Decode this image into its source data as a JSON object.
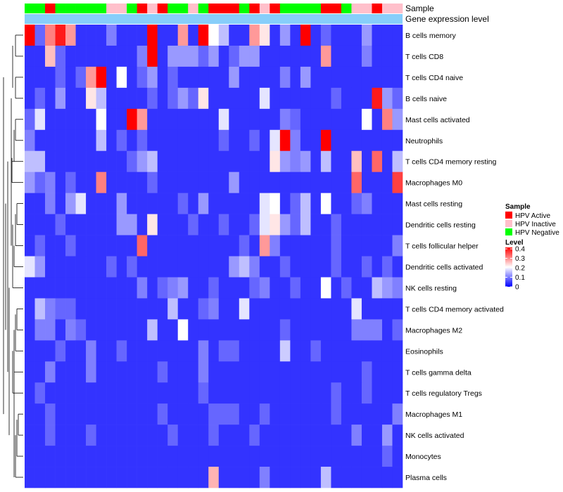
{
  "chart_data": {
    "type": "heatmap",
    "annotation_labels": [
      "Sample",
      "Gene expression level"
    ],
    "rows": [
      "B cells memory",
      "T cells CD8",
      "T cells CD4 naive",
      "B cells naive",
      "Mast cells activated",
      "Neutrophils",
      "T cells CD4 memory resting",
      "Macrophages M0",
      "Mast cells resting",
      "Dendritic cells resting",
      "T cells follicular helper",
      "Dendritic cells activated",
      "NK cells resting",
      "T cells CD4 memory activated",
      "Macrophages M2",
      "Eosinophils",
      "T cells gamma delta",
      "T cells regulatory  Tregs",
      "Macrophages M1",
      "NK cells activated",
      "Monocytes",
      "Plasma cells"
    ],
    "sample_annotation": [
      "Negative",
      "Negative",
      "Active",
      "Negative",
      "Negative",
      "Negative",
      "Negative",
      "Negative",
      "Inactive",
      "Inactive",
      "Negative",
      "Active",
      "Inactive",
      "Active",
      "Negative",
      "Negative",
      "Inactive",
      "Negative",
      "Active",
      "Active",
      "Active",
      "Negative",
      "Active",
      "Inactive",
      "Active",
      "Negative",
      "Negative",
      "Negative",
      "Negative",
      "Active",
      "Active",
      "Negative",
      "Inactive",
      "Inactive",
      "Active",
      "Inactive",
      "Inactive"
    ],
    "sample_legend": {
      "title": "Sample",
      "entries": [
        "HPV Active",
        "HPV Inactive",
        "HPV Negative"
      ]
    },
    "value_legend": {
      "title": "Level",
      "ticks": [
        "0.4",
        "0.3",
        "0.2",
        "0.1",
        "0"
      ],
      "range": [
        0,
        0.4
      ]
    },
    "values": [
      [
        0.4,
        0.08,
        0.3,
        0.38,
        0.28,
        0.04,
        0.04,
        0.04,
        0.1,
        0.04,
        0.04,
        0.04,
        0.4,
        0.04,
        0.04,
        0.28,
        0.04,
        0.4,
        0.2,
        0.15,
        0.04,
        0.04,
        0.28,
        0.22,
        0.04,
        0.12,
        0.04,
        0.4,
        0.04,
        0.08,
        0.04,
        0.04,
        0.04,
        0.12,
        0.04,
        0.04,
        0.04
      ],
      [
        0.04,
        0.04,
        0.25,
        0.08,
        0.04,
        0.04,
        0.04,
        0.04,
        0.04,
        0.04,
        0.04,
        0.1,
        0.4,
        0.04,
        0.12,
        0.12,
        0.12,
        0.08,
        0.12,
        0.04,
        0.08,
        0.12,
        0.12,
        0.04,
        0.04,
        0.04,
        0.04,
        0.04,
        0.04,
        0.28,
        0.04,
        0.04,
        0.04,
        0.1,
        0.04,
        0.04,
        0.04
      ],
      [
        0.04,
        0.04,
        0.04,
        0.08,
        0.04,
        0.08,
        0.28,
        0.4,
        0.04,
        0.2,
        0.04,
        0.08,
        0.12,
        0.04,
        0.08,
        0.04,
        0.04,
        0.04,
        0.04,
        0.04,
        0.12,
        0.04,
        0.04,
        0.04,
        0.04,
        0.1,
        0.04,
        0.12,
        0.04,
        0.04,
        0.04,
        0.04,
        0.04,
        0.04,
        0.04,
        0.04,
        0.04
      ],
      [
        0.04,
        0.08,
        0.04,
        0.12,
        0.04,
        0.04,
        0.22,
        0.15,
        0.04,
        0.04,
        0.04,
        0.04,
        0.08,
        0.04,
        0.08,
        0.12,
        0.08,
        0.22,
        0.04,
        0.04,
        0.04,
        0.04,
        0.04,
        0.18,
        0.04,
        0.04,
        0.04,
        0.04,
        0.04,
        0.04,
        0.08,
        0.04,
        0.04,
        0.04,
        0.38,
        0.12,
        0.08
      ],
      [
        0.08,
        0.18,
        0.04,
        0.04,
        0.04,
        0.04,
        0.04,
        0.2,
        0.04,
        0.04,
        0.4,
        0.28,
        0.04,
        0.04,
        0.04,
        0.04,
        0.04,
        0.04,
        0.04,
        0.18,
        0.04,
        0.04,
        0.04,
        0.04,
        0.04,
        0.1,
        0.08,
        0.04,
        0.04,
        0.04,
        0.04,
        0.04,
        0.04,
        0.2,
        0.04,
        0.3,
        0.12
      ],
      [
        0.1,
        0.04,
        0.04,
        0.04,
        0.04,
        0.04,
        0.04,
        0.15,
        0.04,
        0.08,
        0.04,
        0.08,
        0.04,
        0.04,
        0.04,
        0.04,
        0.04,
        0.04,
        0.04,
        0.08,
        0.04,
        0.04,
        0.08,
        0.04,
        0.18,
        0.4,
        0.1,
        0.04,
        0.04,
        0.4,
        0.04,
        0.04,
        0.04,
        0.04,
        0.04,
        0.04,
        0.04
      ],
      [
        0.15,
        0.15,
        0.04,
        0.04,
        0.04,
        0.04,
        0.04,
        0.04,
        0.04,
        0.04,
        0.08,
        0.12,
        0.15,
        0.04,
        0.04,
        0.04,
        0.04,
        0.04,
        0.04,
        0.04,
        0.04,
        0.04,
        0.04,
        0.04,
        0.22,
        0.12,
        0.1,
        0.12,
        0.04,
        0.15,
        0.04,
        0.04,
        0.25,
        0.04,
        0.32,
        0.04,
        0.15
      ],
      [
        0.12,
        0.08,
        0.1,
        0.04,
        0.08,
        0.04,
        0.04,
        0.3,
        0.04,
        0.04,
        0.04,
        0.04,
        0.08,
        0.04,
        0.04,
        0.04,
        0.04,
        0.04,
        0.04,
        0.04,
        0.12,
        0.04,
        0.04,
        0.04,
        0.04,
        0.04,
        0.04,
        0.04,
        0.04,
        0.04,
        0.04,
        0.04,
        0.32,
        0.04,
        0.04,
        0.04,
        0.35
      ],
      [
        0.04,
        0.04,
        0.1,
        0.04,
        0.12,
        0.18,
        0.04,
        0.04,
        0.04,
        0.12,
        0.04,
        0.04,
        0.04,
        0.04,
        0.04,
        0.08,
        0.04,
        0.12,
        0.04,
        0.04,
        0.04,
        0.04,
        0.04,
        0.18,
        0.2,
        0.04,
        0.08,
        0.15,
        0.04,
        0.2,
        0.04,
        0.04,
        0.08,
        0.1,
        0.04,
        0.04,
        0.04
      ],
      [
        0.04,
        0.04,
        0.04,
        0.08,
        0.04,
        0.04,
        0.04,
        0.04,
        0.04,
        0.12,
        0.12,
        0.04,
        0.22,
        0.04,
        0.04,
        0.04,
        0.08,
        0.04,
        0.04,
        0.08,
        0.04,
        0.04,
        0.08,
        0.18,
        0.22,
        0.12,
        0.08,
        0.15,
        0.04,
        0.04,
        0.08,
        0.04,
        0.04,
        0.04,
        0.04,
        0.04,
        0.04
      ],
      [
        0.04,
        0.08,
        0.04,
        0.04,
        0.08,
        0.04,
        0.04,
        0.04,
        0.04,
        0.04,
        0.04,
        0.32,
        0.04,
        0.04,
        0.04,
        0.04,
        0.04,
        0.04,
        0.04,
        0.04,
        0.04,
        0.08,
        0.04,
        0.28,
        0.1,
        0.04,
        0.04,
        0.04,
        0.04,
        0.04,
        0.08,
        0.04,
        0.04,
        0.04,
        0.04,
        0.04,
        0.1
      ],
      [
        0.18,
        0.12,
        0.04,
        0.04,
        0.04,
        0.04,
        0.04,
        0.04,
        0.08,
        0.04,
        0.08,
        0.04,
        0.04,
        0.04,
        0.04,
        0.04,
        0.04,
        0.04,
        0.04,
        0.04,
        0.12,
        0.15,
        0.1,
        0.04,
        0.04,
        0.08,
        0.04,
        0.04,
        0.04,
        0.04,
        0.08,
        0.04,
        0.04,
        0.08,
        0.04,
        0.08,
        0.04
      ],
      [
        0.04,
        0.04,
        0.04,
        0.04,
        0.04,
        0.04,
        0.04,
        0.04,
        0.04,
        0.04,
        0.04,
        0.1,
        0.04,
        0.08,
        0.1,
        0.12,
        0.04,
        0.04,
        0.08,
        0.04,
        0.04,
        0.04,
        0.08,
        0.1,
        0.04,
        0.04,
        0.08,
        0.04,
        0.04,
        0.2,
        0.04,
        0.08,
        0.04,
        0.04,
        0.15,
        0.12,
        0.1
      ],
      [
        0.04,
        0.15,
        0.1,
        0.08,
        0.08,
        0.04,
        0.04,
        0.04,
        0.04,
        0.04,
        0.04,
        0.04,
        0.04,
        0.04,
        0.15,
        0.04,
        0.04,
        0.08,
        0.1,
        0.04,
        0.04,
        0.18,
        0.04,
        0.04,
        0.04,
        0.04,
        0.04,
        0.04,
        0.04,
        0.04,
        0.04,
        0.04,
        0.18,
        0.04,
        0.04,
        0.04,
        0.04
      ],
      [
        0.04,
        0.1,
        0.1,
        0.04,
        0.1,
        0.08,
        0.04,
        0.04,
        0.04,
        0.04,
        0.04,
        0.04,
        0.15,
        0.04,
        0.04,
        0.2,
        0.04,
        0.04,
        0.04,
        0.04,
        0.04,
        0.04,
        0.04,
        0.04,
        0.04,
        0.08,
        0.04,
        0.04,
        0.04,
        0.04,
        0.04,
        0.04,
        0.1,
        0.1,
        0.1,
        0.04,
        0.08
      ],
      [
        0.04,
        0.04,
        0.04,
        0.08,
        0.04,
        0.04,
        0.1,
        0.04,
        0.04,
        0.08,
        0.04,
        0.04,
        0.04,
        0.04,
        0.04,
        0.04,
        0.04,
        0.1,
        0.04,
        0.08,
        0.08,
        0.04,
        0.04,
        0.04,
        0.04,
        0.16,
        0.04,
        0.04,
        0.08,
        0.04,
        0.04,
        0.04,
        0.04,
        0.04,
        0.04,
        0.04,
        0.04
      ],
      [
        0.04,
        0.04,
        0.1,
        0.04,
        0.04,
        0.04,
        0.1,
        0.04,
        0.04,
        0.04,
        0.04,
        0.04,
        0.04,
        0.08,
        0.04,
        0.04,
        0.04,
        0.1,
        0.04,
        0.04,
        0.04,
        0.04,
        0.04,
        0.04,
        0.04,
        0.04,
        0.04,
        0.04,
        0.04,
        0.04,
        0.04,
        0.04,
        0.04,
        0.08,
        0.04,
        0.04,
        0.04
      ],
      [
        0.04,
        0.08,
        0.04,
        0.04,
        0.04,
        0.04,
        0.04,
        0.04,
        0.04,
        0.04,
        0.04,
        0.04,
        0.04,
        0.04,
        0.04,
        0.04,
        0.04,
        0.08,
        0.04,
        0.04,
        0.04,
        0.04,
        0.04,
        0.04,
        0.04,
        0.04,
        0.04,
        0.04,
        0.04,
        0.04,
        0.08,
        0.04,
        0.04,
        0.08,
        0.04,
        0.04,
        0.04
      ],
      [
        0.04,
        0.04,
        0.08,
        0.04,
        0.04,
        0.04,
        0.04,
        0.04,
        0.04,
        0.04,
        0.04,
        0.04,
        0.04,
        0.08,
        0.04,
        0.04,
        0.04,
        0.04,
        0.08,
        0.08,
        0.08,
        0.04,
        0.04,
        0.08,
        0.04,
        0.04,
        0.04,
        0.04,
        0.04,
        0.04,
        0.08,
        0.04,
        0.04,
        0.04,
        0.04,
        0.04,
        0.1
      ],
      [
        0.04,
        0.04,
        0.08,
        0.04,
        0.04,
        0.04,
        0.08,
        0.04,
        0.04,
        0.04,
        0.04,
        0.04,
        0.04,
        0.04,
        0.08,
        0.04,
        0.04,
        0.04,
        0.08,
        0.04,
        0.04,
        0.04,
        0.08,
        0.04,
        0.04,
        0.04,
        0.04,
        0.04,
        0.04,
        0.04,
        0.04,
        0.04,
        0.1,
        0.04,
        0.04,
        0.12,
        0.04
      ],
      [
        0.04,
        0.04,
        0.04,
        0.04,
        0.04,
        0.04,
        0.04,
        0.04,
        0.04,
        0.04,
        0.04,
        0.04,
        0.04,
        0.04,
        0.04,
        0.04,
        0.04,
        0.04,
        0.04,
        0.04,
        0.04,
        0.04,
        0.04,
        0.04,
        0.04,
        0.04,
        0.04,
        0.04,
        0.04,
        0.04,
        0.04,
        0.04,
        0.04,
        0.04,
        0.04,
        0.08,
        0.04
      ],
      [
        0.04,
        0.04,
        0.04,
        0.04,
        0.04,
        0.04,
        0.04,
        0.04,
        0.04,
        0.04,
        0.04,
        0.04,
        0.04,
        0.04,
        0.04,
        0.04,
        0.04,
        0.04,
        0.26,
        0.04,
        0.04,
        0.04,
        0.04,
        0.1,
        0.04,
        0.04,
        0.04,
        0.04,
        0.04,
        0.15,
        0.04,
        0.04,
        0.04,
        0.04,
        0.04,
        0.04,
        0.04
      ]
    ]
  },
  "colors": {
    "active": "#ff0000",
    "inactive": "#ffc0cb",
    "negative": "#00ff00",
    "expr_bar": "#87cefa",
    "low": "#0000ff",
    "mid": "#ffffff",
    "high": "#ff0000"
  }
}
